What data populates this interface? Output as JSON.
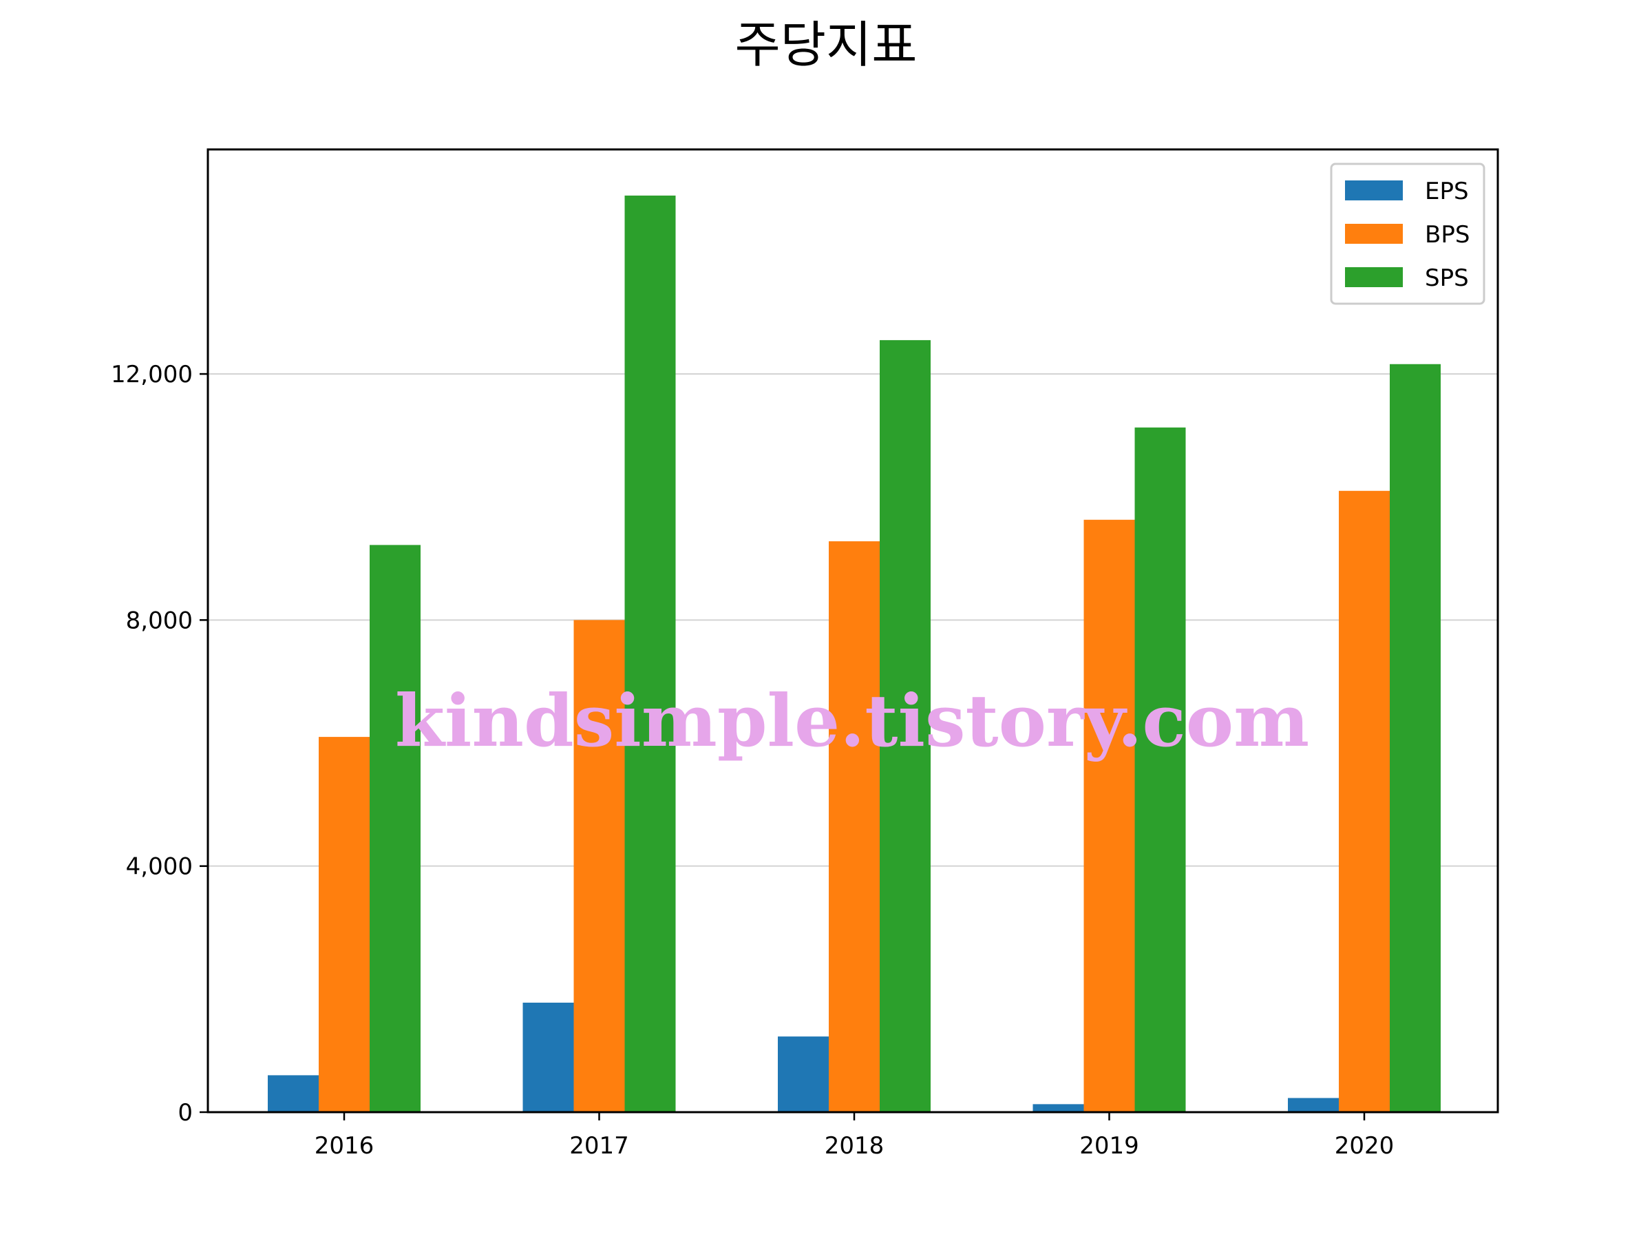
{
  "chart_data": {
    "type": "bar",
    "title": "주당지표",
    "xlabel": "",
    "ylabel": "",
    "categories": [
      "2016",
      "2017",
      "2018",
      "2019",
      "2020"
    ],
    "series": [
      {
        "name": "EPS",
        "color": "#1f77b4",
        "values": [
          600,
          1780,
          1230,
          130,
          230
        ]
      },
      {
        "name": "BPS",
        "color": "#ff7f0e",
        "values": [
          6100,
          8000,
          9280,
          9630,
          10100
        ]
      },
      {
        "name": "SPS",
        "color": "#2ca02c",
        "values": [
          9220,
          14900,
          12550,
          11130,
          12160
        ]
      }
    ],
    "ylim": [
      0,
      15650
    ],
    "yticks": [
      0,
      4000,
      8000,
      12000
    ],
    "ytick_labels": [
      "0",
      "4,000",
      "8,000",
      "12,000"
    ],
    "grid": "horizontal",
    "legend_position": "top-right",
    "watermark": "kindsimple.tistory.com"
  }
}
